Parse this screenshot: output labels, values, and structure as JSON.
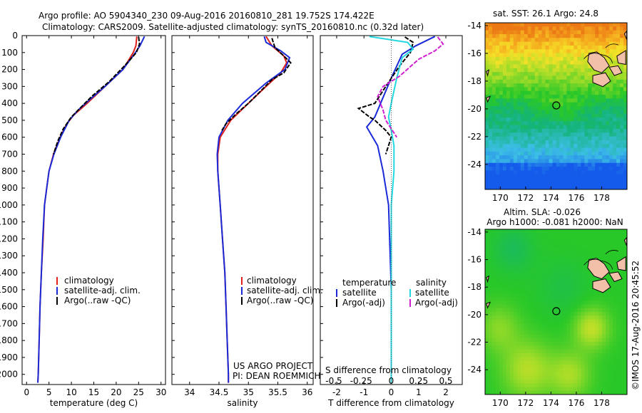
{
  "header": {
    "line1": "Argo profile: AO 5904340_230 09-Aug-2016 20160810_281 19.752S 174.422E",
    "line2": "Climatology: CARS2009. Satellite-adjusted climatology: synTS_20160810.nc (0.32d later)"
  },
  "credits": {
    "project": "US ARGO PROJECT",
    "pi": "PI: DEAN ROEMMICH",
    "imos": "©IMOS 17-Aug-2016 20:45:52"
  },
  "colors": {
    "climatology": "#e0201a",
    "satellite": "#1a2ad8",
    "argo": "#000000",
    "sal_satellite": "#22d8e0",
    "sal_argo": "#d020d0",
    "land": "#f2c0a8"
  },
  "chart_data": [
    {
      "type": "line",
      "name": "temperature-profile",
      "xlabel": "temperature (deg C)",
      "xlim": [
        -1,
        31
      ],
      "ylim": [
        2060,
        0
      ],
      "xticks": [
        "0",
        "5",
        "10",
        "15",
        "20",
        "25",
        "30"
      ],
      "xtick_values": [
        0,
        5,
        10,
        15,
        20,
        25,
        30
      ],
      "yticks": [
        "0",
        "100",
        "200",
        "300",
        "400",
        "500",
        "600",
        "700",
        "800",
        "900",
        "1000",
        "1100",
        "1200",
        "1300",
        "1400",
        "1500",
        "1600",
        "1700",
        "1800",
        "1900",
        "2000"
      ],
      "ytick_values": [
        0,
        100,
        200,
        300,
        400,
        500,
        600,
        700,
        800,
        900,
        1000,
        1100,
        1200,
        1300,
        1400,
        1500,
        1600,
        1700,
        1800,
        1900,
        2000
      ],
      "legend": [
        "climatology",
        "satellite-adj. clim.",
        "Argo(..raw -QC)"
      ],
      "series": [
        {
          "name": "climatology",
          "color_key": "climatology",
          "points": [
            [
              24.6,
              5
            ],
            [
              24.4,
              60
            ],
            [
              23.8,
              100
            ],
            [
              21.5,
              200
            ],
            [
              17.5,
              300
            ],
            [
              13.5,
              400
            ],
            [
              10.5,
              470
            ],
            [
              9.0,
              520
            ],
            [
              7.5,
              600
            ],
            [
              6.0,
              700
            ],
            [
              5.0,
              800
            ],
            [
              4.5,
              900
            ],
            [
              4.0,
              1000
            ],
            [
              3.7,
              1200
            ],
            [
              3.3,
              1400
            ],
            [
              3.0,
              1600
            ],
            [
              2.8,
              1800
            ],
            [
              2.6,
              2000
            ],
            [
              2.5,
              2050
            ]
          ]
        },
        {
          "name": "satellite-adj. clim.",
          "color_key": "satellite",
          "points": [
            [
              26.3,
              5
            ],
            [
              25.3,
              60
            ],
            [
              24.3,
              100
            ],
            [
              21.5,
              200
            ],
            [
              17.5,
              300
            ],
            [
              14.0,
              380
            ],
            [
              11.5,
              440
            ],
            [
              9.5,
              500
            ],
            [
              7.6,
              600
            ],
            [
              6.1,
              700
            ],
            [
              5.0,
              800
            ],
            [
              4.5,
              900
            ],
            [
              4.0,
              1000
            ],
            [
              3.6,
              1200
            ],
            [
              3.3,
              1400
            ],
            [
              3.0,
              1600
            ],
            [
              2.8,
              1800
            ],
            [
              2.6,
              2000
            ],
            [
              2.5,
              2050
            ]
          ]
        },
        {
          "name": "Argo(..raw -QC)",
          "color_key": "argo",
          "points": [
            [
              25.0,
              8
            ],
            [
              25.2,
              50
            ],
            [
              24.5,
              100
            ],
            [
              21.8,
              180
            ],
            [
              18.5,
              270
            ],
            [
              14.5,
              360
            ],
            [
              11.5,
              440
            ],
            [
              10.0,
              480
            ],
            [
              8.2,
              550
            ],
            [
              7.0,
              620
            ],
            [
              6.0,
              700
            ]
          ]
        }
      ]
    },
    {
      "type": "line",
      "name": "salinity-profile",
      "xlabel": "salinity",
      "xlim": [
        33.7,
        36.1
      ],
      "ylim": [
        2060,
        0
      ],
      "xticks": [
        "34",
        "34.5",
        "35",
        "35.5",
        "36"
      ],
      "xtick_values": [
        34,
        34.5,
        35,
        35.5,
        36
      ],
      "legend": [
        "climatology",
        "satellite-adj. clim.",
        "Argo(..raw -QC)"
      ],
      "series": [
        {
          "name": "climatology",
          "color_key": "climatology",
          "points": [
            [
              35.3,
              5
            ],
            [
              35.4,
              60
            ],
            [
              35.6,
              120
            ],
            [
              35.65,
              160
            ],
            [
              35.55,
              220
            ],
            [
              35.3,
              300
            ],
            [
              35.0,
              400
            ],
            [
              34.7,
              500
            ],
            [
              34.52,
              600
            ],
            [
              34.48,
              700
            ],
            [
              34.48,
              800
            ],
            [
              34.5,
              900
            ],
            [
              34.52,
              1000
            ],
            [
              34.56,
              1200
            ],
            [
              34.6,
              1400
            ],
            [
              34.62,
              1600
            ],
            [
              34.64,
              1800
            ],
            [
              34.66,
              2000
            ],
            [
              34.66,
              2050
            ]
          ]
        },
        {
          "name": "satellite-adj. clim.",
          "color_key": "satellite",
          "points": [
            [
              35.27,
              5
            ],
            [
              35.3,
              40
            ],
            [
              35.55,
              90
            ],
            [
              35.7,
              130
            ],
            [
              35.62,
              200
            ],
            [
              35.3,
              280
            ],
            [
              34.9,
              400
            ],
            [
              34.65,
              500
            ],
            [
              34.5,
              600
            ],
            [
              34.47,
              700
            ],
            [
              34.48,
              800
            ],
            [
              34.5,
              900
            ],
            [
              34.52,
              1000
            ],
            [
              34.56,
              1200
            ],
            [
              34.6,
              1400
            ],
            [
              34.62,
              1600
            ],
            [
              34.64,
              1800
            ],
            [
              34.66,
              2000
            ],
            [
              34.66,
              2050
            ]
          ]
        },
        {
          "name": "Argo(..raw -QC)",
          "color_key": "argo",
          "points": [
            [
              35.4,
              15
            ],
            [
              35.45,
              70
            ],
            [
              35.6,
              120
            ],
            [
              35.72,
              160
            ],
            [
              35.6,
              220
            ],
            [
              35.4,
              260
            ],
            [
              35.2,
              330
            ],
            [
              35.0,
              400
            ],
            [
              34.8,
              460
            ],
            [
              34.62,
              520
            ],
            [
              34.55,
              560
            ]
          ]
        }
      ]
    },
    {
      "type": "line",
      "name": "difference-profile",
      "xlabel": "T difference from climatology",
      "top_xlabel": "S difference from climatology",
      "xlim": [
        -2.6,
        2.6
      ],
      "ylim": [
        2060,
        0
      ],
      "xticks": [
        "-2",
        "-1",
        "0",
        "1",
        "2"
      ],
      "xtick_values": [
        -2,
        -1,
        0,
        1,
        2
      ],
      "top_xticks": [
        "-0.5",
        "-0.25",
        "0",
        "0.25",
        "0.5"
      ],
      "top_xtick_values": [
        -2,
        -1,
        0,
        1,
        2
      ],
      "legend_left_title": "temperature",
      "legend_left": [
        "satellite",
        "Argo(-adj)"
      ],
      "legend_right_title": "salinity",
      "legend_right": [
        "satellite",
        "Argo(-adj)"
      ],
      "series": [
        {
          "name": "T satellite",
          "color_key": "satellite",
          "points": [
            [
              1.6,
              5
            ],
            [
              0.9,
              60
            ],
            [
              0.4,
              110
            ],
            [
              0.0,
              250
            ],
            [
              -0.6,
              480
            ],
            [
              -0.9,
              540
            ],
            [
              -0.5,
              650
            ],
            [
              -0.3,
              800
            ],
            [
              -0.1,
              1000
            ],
            [
              0.0,
              1500
            ],
            [
              0.0,
              2050
            ]
          ]
        },
        {
          "name": "T Argo(-adj)",
          "color_key": "argo",
          "points": [
            [
              0.5,
              8
            ],
            [
              0.8,
              40
            ],
            [
              0.7,
              100
            ],
            [
              0.3,
              180
            ],
            [
              -0.2,
              300
            ],
            [
              -0.6,
              400
            ],
            [
              -1.2,
              430
            ],
            [
              -0.8,
              480
            ],
            [
              -0.6,
              500
            ],
            [
              -0.2,
              560
            ],
            [
              0.0,
              600
            ],
            [
              -0.2,
              700
            ]
          ]
        },
        {
          "name": "S satellite",
          "color_key": "sal_satellite",
          "points": [
            [
              -0.8,
              5
            ],
            [
              0.6,
              40
            ],
            [
              0.8,
              80
            ],
            [
              0.4,
              130
            ],
            [
              0.2,
              250
            ],
            [
              0.0,
              400
            ],
            [
              -0.1,
              480
            ],
            [
              0.0,
              560
            ],
            [
              0.1,
              650
            ],
            [
              0.1,
              800
            ],
            [
              0.0,
              1000
            ],
            [
              0.0,
              1500
            ],
            [
              0.0,
              2050
            ]
          ]
        },
        {
          "name": "S Argo(-adj)",
          "color_key": "sal_argo",
          "points": [
            [
              1.7,
              8
            ],
            [
              1.9,
              50
            ],
            [
              1.6,
              90
            ],
            [
              1.0,
              140
            ],
            [
              0.3,
              240
            ],
            [
              -0.3,
              300
            ],
            [
              -0.5,
              360
            ],
            [
              -0.3,
              440
            ],
            [
              -0.2,
              500
            ],
            [
              0.2,
              600
            ]
          ]
        }
      ]
    },
    {
      "type": "heatmap",
      "name": "sst-map",
      "title": "sat. SST: 26.1 Argo: 24.8",
      "xlim": [
        168.8,
        180
      ],
      "ylim": [
        -25.8,
        -13.8
      ],
      "xticks": [
        "170",
        "172",
        "174",
        "176",
        "178"
      ],
      "xtick_values": [
        170,
        172,
        174,
        176,
        178
      ],
      "yticks": [
        "-14",
        "-16",
        "-18",
        "-20",
        "-22",
        "-24"
      ],
      "ytick_values": [
        -14,
        -16,
        -18,
        -20,
        -22,
        -24
      ],
      "argo_position": [
        174.42,
        -19.75
      ]
    },
    {
      "type": "heatmap",
      "name": "sla-map",
      "title": "Altim. SLA: -0.026",
      "subtitle": "Argo h1000: -0.081 h2000: NaN",
      "xlim": [
        168.8,
        180
      ],
      "ylim": [
        -25.8,
        -13.8
      ],
      "xticks": [
        "170",
        "172",
        "174",
        "176",
        "178"
      ],
      "xtick_values": [
        170,
        172,
        174,
        176,
        178
      ],
      "yticks": [
        "-14",
        "-16",
        "-18",
        "-20",
        "-22",
        "-24"
      ],
      "ytick_values": [
        -14,
        -16,
        -18,
        -20,
        -22,
        -24
      ],
      "argo_position": [
        174.42,
        -19.75
      ]
    }
  ]
}
